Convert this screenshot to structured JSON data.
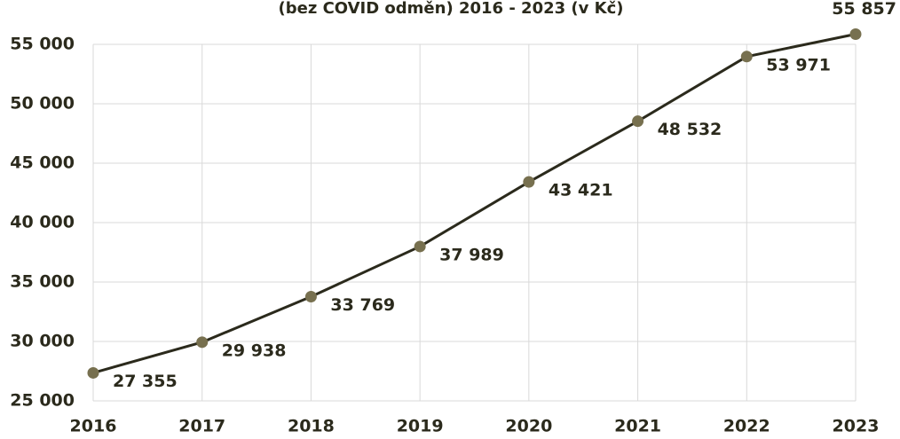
{
  "chart_data": {
    "type": "line",
    "title": "(bez COVID odměn) 2016 - 2023 (v Kč)",
    "categories": [
      "2016",
      "2017",
      "2018",
      "2019",
      "2020",
      "2021",
      "2022",
      "2023"
    ],
    "values": [
      27355,
      29938,
      33769,
      37989,
      43421,
      48532,
      53971,
      55857
    ],
    "value_labels": [
      "27 355",
      "29 938",
      "33 769",
      "37 989",
      "43 421",
      "48 532",
      "53 971",
      "55 857"
    ],
    "color": "#2b2a1c",
    "marker_color": "#77704f",
    "ylim": [
      25000,
      55000
    ],
    "yticks": [
      {
        "value": 25000,
        "label": "25 000"
      },
      {
        "value": 30000,
        "label": "30 000"
      },
      {
        "value": 35000,
        "label": "35 000"
      },
      {
        "value": 40000,
        "label": "40 000"
      },
      {
        "value": 45000,
        "label": "45 000"
      },
      {
        "value": 50000,
        "label": "50 000"
      },
      {
        "value": 55000,
        "label": "55 000"
      }
    ],
    "grid": true
  }
}
